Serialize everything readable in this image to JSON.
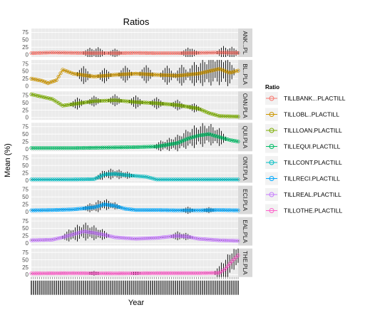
{
  "chart_data": {
    "type": "line",
    "layout": "faceted-vertical",
    "title": "Ratios",
    "xlabel": "Year",
    "ylabel": "Mean (%)",
    "ylim": [
      -8,
      88
    ],
    "yticks": [
      0,
      25,
      50,
      75
    ],
    "grid": true,
    "legend_title": "Ratio",
    "legend_position": "right",
    "x_points": 100,
    "series": [
      {
        "name": "TILLBANK...PLACTILL",
        "strip": "TILLBANK...PLACTILL",
        "strip_display": "ANK...PL",
        "color": "#F8766D",
        "anchors_x": [
          0,
          10,
          20,
          30,
          40,
          50,
          60,
          70,
          80,
          90,
          99
        ],
        "anchors_y": [
          5,
          7,
          6,
          5,
          5,
          6,
          5,
          5,
          6,
          7,
          6
        ],
        "spikes": [
          [
            28,
            18
          ],
          [
            32,
            20
          ],
          [
            40,
            15
          ],
          [
            75,
            18
          ],
          [
            77,
            14
          ],
          [
            92,
            22
          ],
          [
            96,
            20
          ]
        ]
      },
      {
        "name": "TILLOBL..PLACTILL",
        "strip": "TILLOBL..PLACTILL",
        "strip_display": "BL..PLA",
        "color": "#CD9600",
        "anchors_x": [
          0,
          5,
          8,
          12,
          15,
          20,
          30,
          40,
          50,
          60,
          70,
          80,
          85,
          90,
          95,
          99
        ],
        "anchors_y": [
          25,
          18,
          10,
          20,
          55,
          42,
          32,
          38,
          42,
          38,
          35,
          42,
          50,
          58,
          45,
          52
        ],
        "spikes": [
          [
            25,
            30
          ],
          [
            35,
            25
          ],
          [
            45,
            28
          ],
          [
            55,
            30
          ],
          [
            65,
            32
          ],
          [
            72,
            35
          ],
          [
            78,
            40
          ],
          [
            82,
            45
          ],
          [
            86,
            50
          ],
          [
            90,
            55
          ],
          [
            94,
            48
          ]
        ]
      },
      {
        "name": "TILLLOAN.PLACTILL",
        "strip": "TILLLOAN.PLACTILL",
        "strip_display": "OAN.PLA",
        "color": "#7CAE00",
        "anchors_x": [
          0,
          5,
          10,
          15,
          20,
          30,
          40,
          50,
          60,
          70,
          80,
          85,
          90,
          99
        ],
        "anchors_y": [
          78,
          70,
          62,
          40,
          45,
          55,
          58,
          52,
          48,
          42,
          30,
          15,
          5,
          3
        ],
        "spikes": [
          [
            22,
            20
          ],
          [
            30,
            18
          ],
          [
            40,
            20
          ],
          [
            50,
            22
          ],
          [
            60,
            20
          ],
          [
            70,
            18
          ],
          [
            78,
            15
          ]
        ]
      },
      {
        "name": "TILLEQUI.PLACTILL",
        "strip": "TILLEQUI.PLACTILL",
        "strip_display": "QUI.PLA",
        "color": "#00BE67",
        "anchors_x": [
          0,
          10,
          20,
          30,
          40,
          50,
          60,
          70,
          75,
          80,
          85,
          90,
          95,
          99
        ],
        "anchors_y": [
          3,
          3,
          3,
          4,
          5,
          6,
          8,
          20,
          35,
          45,
          50,
          40,
          30,
          25
        ],
        "spikes": [
          [
            62,
            18
          ],
          [
            66,
            22
          ],
          [
            70,
            28
          ],
          [
            74,
            32
          ],
          [
            78,
            38
          ],
          [
            82,
            40
          ],
          [
            86,
            36
          ],
          [
            90,
            30
          ]
        ]
      },
      {
        "name": "TILLCONT.PLACTILL",
        "strip": "TILLCONT.PLACTILL",
        "strip_display": "ONT.PLA",
        "color": "#00BFC4",
        "anchors_x": [
          0,
          20,
          30,
          35,
          40,
          45,
          55,
          60,
          70,
          80,
          99
        ],
        "anchors_y": [
          3,
          3,
          4,
          20,
          22,
          18,
          12,
          3,
          3,
          3,
          3
        ],
        "spikes": [
          [
            34,
            15
          ],
          [
            38,
            18
          ],
          [
            42,
            16
          ],
          [
            46,
            12
          ]
        ]
      },
      {
        "name": "TILLRECI.PLACTILL",
        "strip": "TILLRECI.PLACTILL",
        "strip_display": "ECI.PLA",
        "color": "#00A9FF",
        "anchors_x": [
          0,
          10,
          20,
          30,
          35,
          40,
          45,
          50,
          60,
          70,
          80,
          90,
          99
        ],
        "anchors_y": [
          5,
          6,
          8,
          15,
          25,
          20,
          10,
          6,
          6,
          5,
          5,
          6,
          5
        ],
        "spikes": [
          [
            28,
            15
          ],
          [
            32,
            20
          ],
          [
            36,
            18
          ],
          [
            40,
            12
          ],
          [
            75,
            12
          ],
          [
            85,
            10
          ]
        ]
      },
      {
        "name": "TILLREAL.PLACTILL",
        "strip": "TILLREAL.PLACTILL",
        "strip_display": "EAL.PLA",
        "color": "#C77CFF",
        "anchors_x": [
          0,
          10,
          15,
          20,
          25,
          30,
          35,
          40,
          50,
          60,
          70,
          75,
          80,
          90,
          99
        ],
        "anchors_y": [
          10,
          12,
          20,
          30,
          40,
          35,
          28,
          20,
          15,
          18,
          25,
          22,
          15,
          10,
          8
        ],
        "spikes": [
          [
            18,
            20
          ],
          [
            22,
            28
          ],
          [
            26,
            30
          ],
          [
            30,
            25
          ],
          [
            34,
            18
          ],
          [
            70,
            15
          ],
          [
            74,
            12
          ]
        ]
      },
      {
        "name": "TILLOTHE.PLACTILL",
        "strip": "TILLOTHE.PLACTILL",
        "strip_display": "THE.PLA",
        "color": "#FF61CC",
        "anchors_x": [
          0,
          20,
          40,
          60,
          80,
          90,
          93,
          96,
          99
        ],
        "anchors_y": [
          4,
          5,
          4,
          5,
          5,
          6,
          20,
          45,
          65
        ],
        "spikes": [
          [
            30,
            8
          ],
          [
            50,
            6
          ],
          [
            91,
            30
          ],
          [
            94,
            40
          ],
          [
            97,
            35
          ],
          [
            99,
            25
          ]
        ]
      }
    ]
  }
}
